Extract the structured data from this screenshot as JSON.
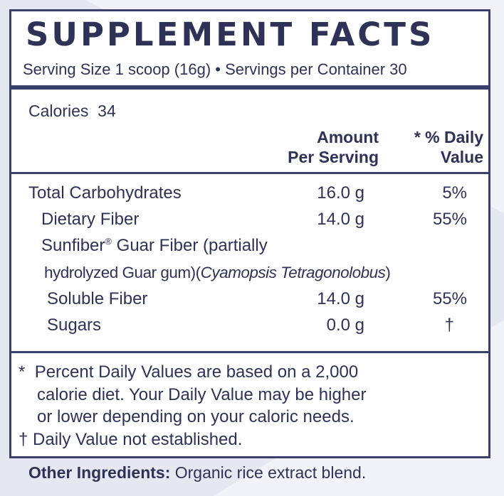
{
  "title": "SUPPLEMENT FACTS",
  "serving_line": "Serving Size 1 scoop (16g)  •  Servings per Container 30",
  "calories": {
    "label": "Calories",
    "value": "34"
  },
  "headers": {
    "amount_line1": "Amount",
    "amount_line2": "Per Serving",
    "dv_line1": "* % Daily",
    "dv_line2": "Value"
  },
  "rows": [
    {
      "name": "Total Carbohydrates",
      "amount": "16.0 g",
      "dv": "5%"
    },
    {
      "name": "Dietary Fiber",
      "amount": "14.0 g",
      "dv": "55%"
    },
    {
      "name_part1": "Sunfiber",
      "reg": "®",
      "name_part2": " Guar Fiber (partially",
      "name_line2a": "hydrolyzed Guar gum)(",
      "name_line2_italic": "Cyamopsis Tetragonolobus",
      "name_line2b": ")"
    },
    {
      "name": "Soluble Fiber",
      "amount": "14.0 g",
      "dv": "55%"
    },
    {
      "name": "Sugars",
      "amount": "0.0 g",
      "dv": "†"
    }
  ],
  "footnotes": {
    "star": "*",
    "line1": "Percent Daily Values are based on a 2,000",
    "line2": "calorie diet. Your Daily Value may be higher",
    "line3": "or lower depending on your caloric needs.",
    "dagger_line": "† Daily Value not established."
  },
  "other_ingredients": {
    "label": "Other Ingredients:",
    "value": " Organic rice extract blend."
  },
  "colors": {
    "ink": "#2f3257",
    "border": "#3b3f6b",
    "background": "#f2f3f8"
  }
}
